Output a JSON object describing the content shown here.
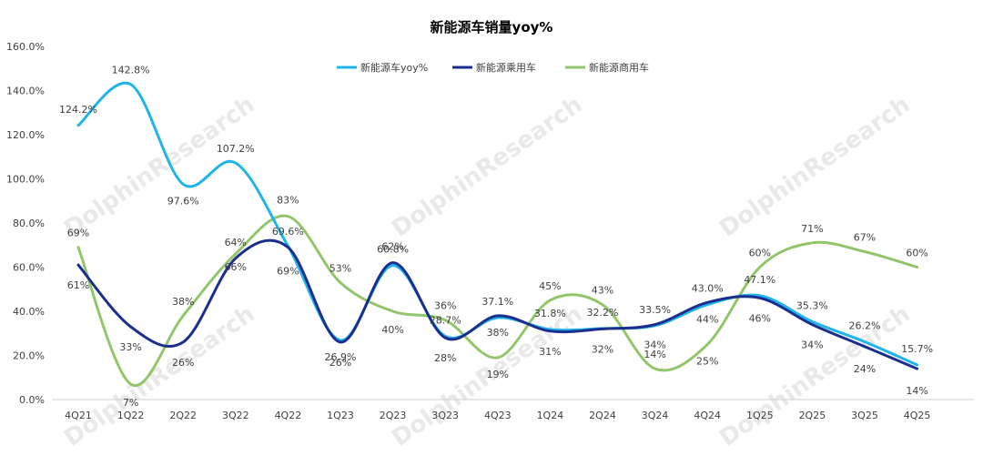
{
  "chart_data": {
    "type": "line",
    "title": "新能源车销量yoy%",
    "categories": [
      "4Q21",
      "1Q22",
      "2Q22",
      "3Q22",
      "4Q22",
      "1Q23",
      "2Q23",
      "3Q23",
      "4Q23",
      "1Q24",
      "2Q24",
      "3Q24",
      "4Q24",
      "1Q25",
      "2Q25",
      "3Q25",
      "4Q25"
    ],
    "ylim": [
      0,
      160
    ],
    "yticks": [
      0,
      20,
      40,
      60,
      80,
      100,
      120,
      140,
      160
    ],
    "ytick_labels": [
      "0.0%",
      "20.0%",
      "40.0%",
      "60.0%",
      "80.0%",
      "100.0%",
      "120.0%",
      "140.0%",
      "160.0%"
    ],
    "grid": false,
    "legend_position": "top",
    "watermark": "DolphinResearch",
    "series": [
      {
        "name": "新能源车yoy%",
        "color": "#1fb4ea",
        "values": [
          124.2,
          142.8,
          97.6,
          107.2,
          69.6,
          26.9,
          60.8,
          28.7,
          37.1,
          31.8,
          32.2,
          33.5,
          43.0,
          47.1,
          35.3,
          26.2,
          15.7
        ],
        "labels": [
          "124.2%",
          "142.8%",
          "97.6%",
          "107.2%",
          "69.6%",
          "26.9%",
          "60.8%",
          "28.7%",
          "37.1%",
          "31.8%",
          "32.2%",
          "33.5%",
          "43.0%",
          "47.1%",
          "35.3%",
          "26.2%",
          "15.7%"
        ]
      },
      {
        "name": "新能源乘用车",
        "color": "#1b2f8f",
        "values": [
          61,
          33,
          26,
          64,
          69,
          26,
          62,
          28,
          38,
          31,
          32,
          34,
          44,
          46,
          34,
          24,
          14
        ],
        "labels": [
          "61%",
          "33%",
          "26%",
          "64%",
          "69%",
          "26%",
          "62%",
          "28%",
          "38%",
          "31%",
          "32%",
          "34%",
          "44%",
          "46%",
          "34%",
          "24%",
          "14%"
        ]
      },
      {
        "name": "新能源商用车",
        "color": "#92c66b",
        "values": [
          69,
          7,
          38,
          66,
          83,
          53,
          40,
          36,
          19,
          45,
          43,
          14,
          25,
          60,
          71,
          67,
          60
        ],
        "labels": [
          "69%",
          "7%",
          "38%",
          "66%",
          "83%",
          "53%",
          "40%",
          "36%",
          "19%",
          "45%",
          "43%",
          "14%",
          "25%",
          "60%",
          "71%",
          "67%",
          "60%"
        ]
      }
    ]
  }
}
